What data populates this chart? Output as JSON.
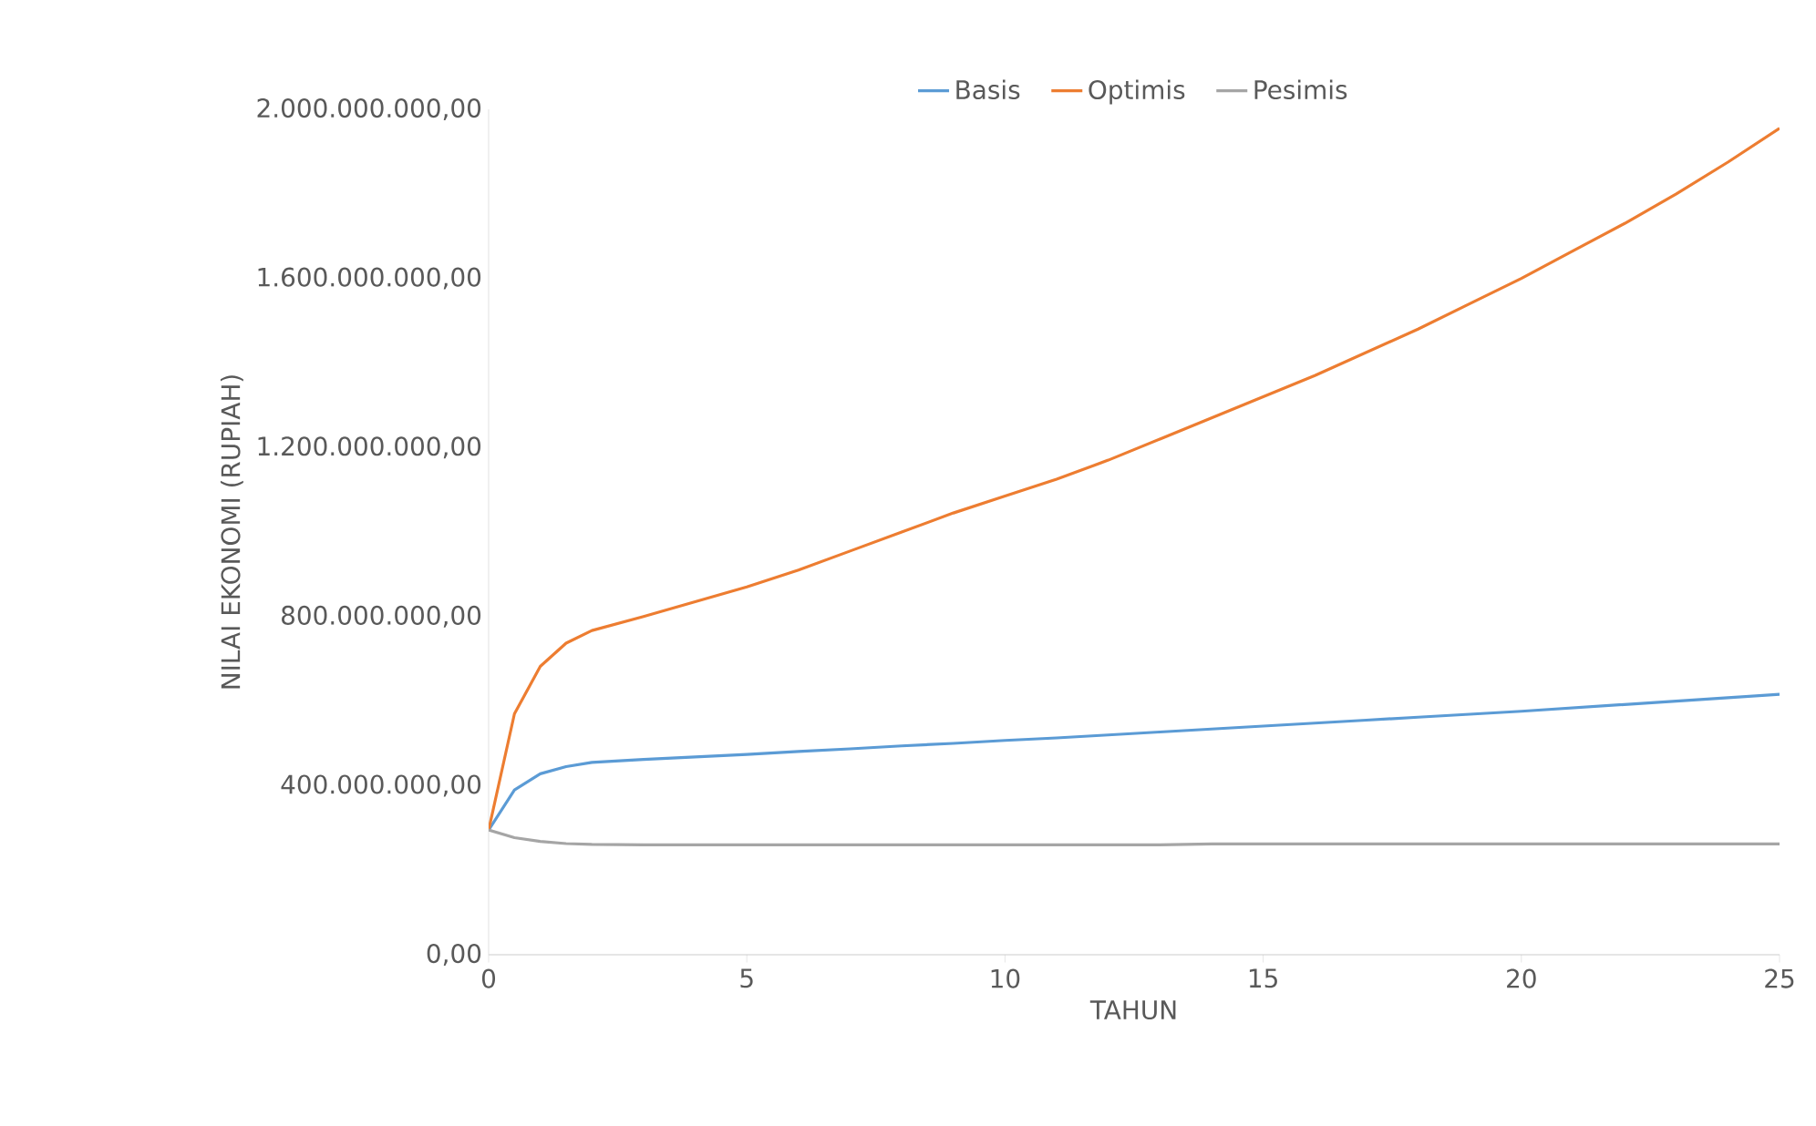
{
  "chart_data": {
    "type": "line",
    "xlabel": "TAHUN",
    "ylabel": "NILAI EKONOMI (RUPIAH)",
    "x": [
      0,
      0.5,
      1,
      1.5,
      2,
      3,
      4,
      5,
      6,
      7,
      8,
      9,
      10,
      11,
      12,
      13,
      14,
      15,
      16,
      17,
      18,
      19,
      20,
      21,
      22,
      23,
      24,
      25
    ],
    "series": [
      {
        "name": "Basis",
        "color": "#5b9bd5",
        "values": [
          295000000,
          390000000,
          428000000,
          445000000,
          455000000,
          462000000,
          468000000,
          474000000,
          481000000,
          487000000,
          494000000,
          500000000,
          507000000,
          513000000,
          520000000,
          527000000,
          534000000,
          541000000,
          548000000,
          555000000,
          562000000,
          569000000,
          576000000,
          584000000,
          592000000,
          600000000,
          608000000,
          616000000
        ]
      },
      {
        "name": "Optimis",
        "color": "#ed7d31",
        "values": [
          295000000,
          570000000,
          682000000,
          737000000,
          767000000,
          800000000,
          835000000,
          870000000,
          910000000,
          955000000,
          1000000000,
          1045000000,
          1085000000,
          1125000000,
          1170000000,
          1220000000,
          1270000000,
          1320000000,
          1370000000,
          1425000000,
          1480000000,
          1540000000,
          1600000000,
          1665000000,
          1730000000,
          1800000000,
          1875000000,
          1955000000
        ]
      },
      {
        "name": "Pesimis",
        "color": "#a5a5a5",
        "values": [
          295000000,
          277000000,
          268000000,
          263000000,
          261000000,
          260000000,
          260000000,
          260000000,
          260000000,
          260000000,
          260000000,
          260000000,
          260000000,
          260000000,
          260000000,
          260000000,
          262000000,
          262000000,
          262000000,
          262000000,
          262000000,
          262000000,
          262000000,
          262000000,
          262000000,
          262000000,
          262000000,
          262000000
        ]
      }
    ],
    "xlim": [
      0,
      25
    ],
    "xticks": [
      0,
      5,
      10,
      15,
      20,
      25
    ],
    "ylim": [
      0,
      2000000000
    ],
    "yticks": [
      {
        "value": 0,
        "label": "0,00"
      },
      {
        "value": 400000000,
        "label": "400.000.000,00"
      },
      {
        "value": 800000000,
        "label": "800.000.000,00"
      },
      {
        "value": 1200000000,
        "label": "1.200.000.000,00"
      },
      {
        "value": 1600000000,
        "label": "1.600.000.000,00"
      },
      {
        "value": 2000000000,
        "label": "2.000.000.000,00"
      }
    ],
    "grid": false,
    "legend": "top",
    "marker": "none",
    "line_style": "solid"
  }
}
